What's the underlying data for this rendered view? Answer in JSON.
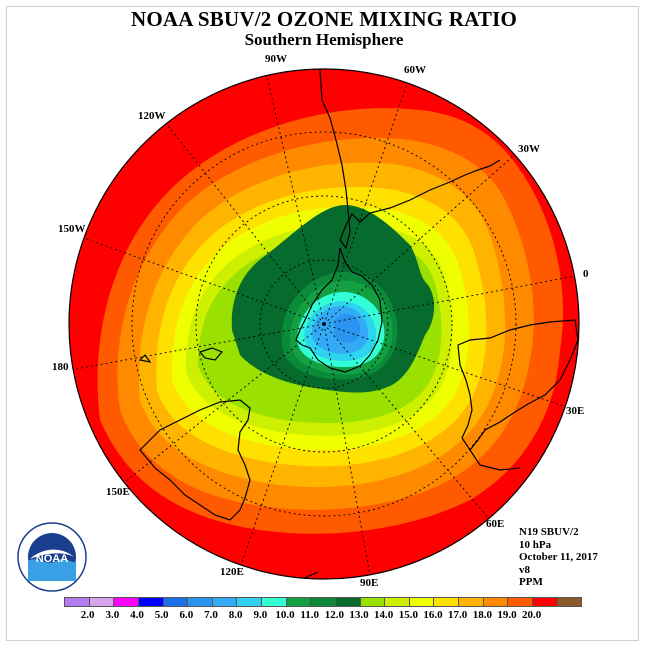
{
  "title": "NOAA SBUV/2 OZONE MIXING RATIO",
  "subtitle": "Southern Hemisphere",
  "longitude_labels": [
    {
      "text": "90W",
      "id": "lon-90w"
    },
    {
      "text": "60W",
      "id": "lon-60w"
    },
    {
      "text": "120W",
      "id": "lon-120w"
    },
    {
      "text": "30W",
      "id": "lon-30w"
    },
    {
      "text": "150W",
      "id": "lon-150w"
    },
    {
      "text": "0",
      "id": "lon-0"
    },
    {
      "text": "180",
      "id": "lon-180"
    },
    {
      "text": "30E",
      "id": "lon-30e"
    },
    {
      "text": "150E",
      "id": "lon-150e"
    },
    {
      "text": "60E",
      "id": "lon-60e"
    },
    {
      "text": "120E",
      "id": "lon-120e"
    },
    {
      "text": "90E",
      "id": "lon-90e"
    }
  ],
  "info": {
    "instrument": "N19 SBUV/2",
    "level": "10 hPa",
    "date": "October 11, 2017",
    "version": "v8",
    "units": "PPM"
  },
  "logo": {
    "text": "NOAA",
    "icon": "noaa-logo-icon"
  },
  "colorbar": {
    "colors": [
      "#b57cf0",
      "#d9a3ec",
      "#ff00ff",
      "#0000ff",
      "#1e6fe8",
      "#2b93f0",
      "#33aaf5",
      "#2ed3f0",
      "#33ffd6",
      "#12a043",
      "#0b8a3a",
      "#066b2c",
      "#9ae000",
      "#ccf000",
      "#f0ff00",
      "#ffe100",
      "#ffb400",
      "#ff8a00",
      "#ff5a00",
      "#ff0000",
      "#8b5a2b"
    ],
    "labels": [
      "2.0",
      "3.0",
      "4.0",
      "5.0",
      "6.0",
      "7.0",
      "8.0",
      "9.0",
      "10.0",
      "11.0",
      "12.0",
      "13.0",
      "14.0",
      "15.0",
      "16.0",
      "17.0",
      "18.0",
      "19.0",
      "20.0"
    ]
  }
}
